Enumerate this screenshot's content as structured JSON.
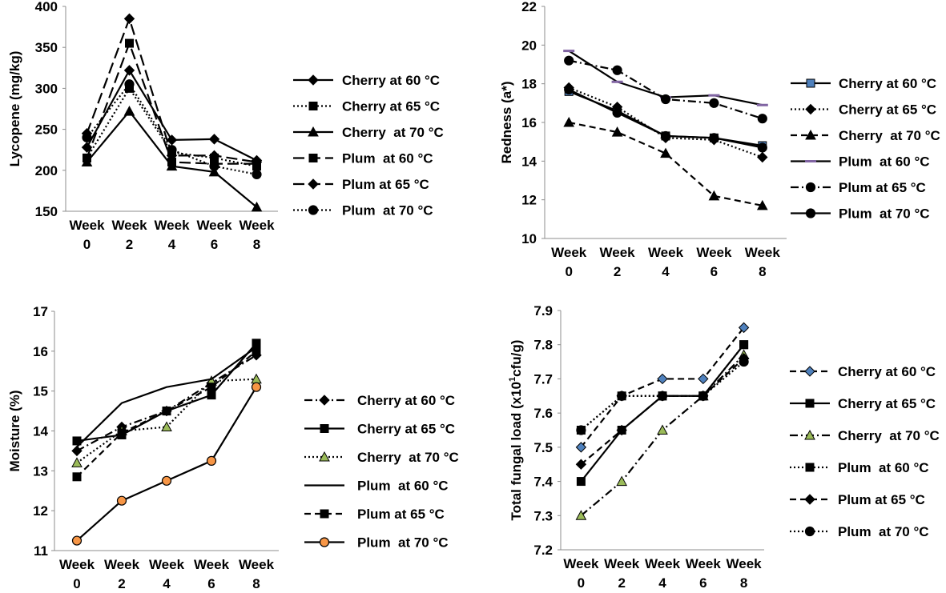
{
  "chart_data": [
    {
      "type": "line",
      "ylabel": "Lycopene (mg/kg)",
      "categories": [
        "Week 0",
        "Week 2",
        "Week 4",
        "Week 6",
        "Week 8"
      ],
      "ylim": [
        150,
        400
      ],
      "yticks": [
        150,
        200,
        250,
        300,
        350,
        400
      ],
      "grid": false,
      "legend_position": "right",
      "series": [
        {
          "name": "Cherry at 60 °C",
          "values": [
            228,
            322,
            237,
            238,
            212
          ],
          "dash": "solid",
          "marker": "diamond",
          "color": "#000000"
        },
        {
          "name": "Cherry at 65 °C",
          "values": [
            215,
            300,
            222,
            215,
            205
          ],
          "dash": "dotted",
          "marker": "square",
          "color": "#000000"
        },
        {
          "name": "Cherry  at 70 °C",
          "values": [
            210,
            272,
            205,
            198,
            155
          ],
          "dash": "solid",
          "marker": "triangle",
          "color": "#000000"
        },
        {
          "name": "Plum  at 60 °C",
          "values": [
            215,
            355,
            210,
            208,
            208
          ],
          "dash": "longdash",
          "marker": "square",
          "color": "#000000"
        },
        {
          "name": "Plum at 65 °C",
          "values": [
            245,
            385,
            218,
            218,
            210
          ],
          "dash": "longdash",
          "marker": "diamond",
          "color": "#000000"
        },
        {
          "name": "Plum  at 70 °C",
          "values": [
            240,
            305,
            225,
            205,
            195
          ],
          "dash": "dotted",
          "marker": "circle",
          "color": "#000000"
        }
      ]
    },
    {
      "type": "line",
      "ylabel": "Redness (a*)",
      "categories": [
        "Week 0",
        "Week 2",
        "Week 4",
        "Week 6",
        "Week 8"
      ],
      "ylim": [
        10,
        22
      ],
      "yticks": [
        10,
        12,
        14,
        16,
        18,
        20,
        22
      ],
      "grid": false,
      "legend_position": "right",
      "series": [
        {
          "name": "Cherry at 60 °C",
          "values": [
            17.6,
            16.6,
            15.3,
            15.2,
            14.8
          ],
          "dash": "solid",
          "marker": "square",
          "color": "#000000",
          "marker_fill": "#4f81bd"
        },
        {
          "name": "Cherry at 65 °C",
          "values": [
            17.8,
            16.8,
            15.2,
            15.1,
            14.2
          ],
          "dash": "dotted",
          "marker": "diamond",
          "color": "#000000"
        },
        {
          "name": "Cherry  at 70 °C",
          "values": [
            16.0,
            15.5,
            14.4,
            12.2,
            11.7
          ],
          "dash": "dashed",
          "marker": "triangle",
          "color": "#000000"
        },
        {
          "name": "Plum  at 60 °C",
          "values": [
            19.7,
            18.1,
            17.3,
            17.4,
            16.9
          ],
          "dash": "solid",
          "marker": "dash",
          "color": "#000000",
          "marker_fill": "#8064a2"
        },
        {
          "name": "Plum at 65 °C",
          "values": [
            19.2,
            18.7,
            17.2,
            17.0,
            16.2
          ],
          "dash": "dashdot",
          "marker": "circle",
          "color": "#000000"
        },
        {
          "name": "Plum  at 70 °C",
          "values": [
            17.7,
            16.5,
            15.3,
            15.2,
            14.7
          ],
          "dash": "solid",
          "marker": "circle",
          "color": "#000000"
        }
      ]
    },
    {
      "type": "line",
      "ylabel": "Moisture (%)",
      "categories": [
        "Week 0",
        "Week 2",
        "Week 4",
        "Week 6",
        "Week 8"
      ],
      "ylim": [
        11,
        17
      ],
      "yticks": [
        11,
        12,
        13,
        14,
        15,
        16,
        17
      ],
      "grid": false,
      "legend_position": "right",
      "series": [
        {
          "name": "Cherry at 60 °C",
          "values": [
            13.5,
            14.1,
            14.5,
            15.2,
            15.9
          ],
          "dash": "dashdot",
          "marker": "diamond",
          "color": "#000000"
        },
        {
          "name": "Cherry at 65 °C",
          "values": [
            13.75,
            13.9,
            14.5,
            14.9,
            16.2
          ],
          "dash": "solid",
          "marker": "square",
          "color": "#000000"
        },
        {
          "name": "Cherry  at 70 °C",
          "values": [
            13.2,
            14.0,
            14.1,
            15.25,
            15.3
          ],
          "dash": "dotted",
          "marker": "triangle",
          "color": "#000000",
          "marker_fill": "#9bbb59"
        },
        {
          "name": "Plum  at 60 °C",
          "values": [
            13.6,
            14.7,
            15.1,
            15.3,
            16.1
          ],
          "dash": "solid",
          "marker": "none",
          "color": "#000000"
        },
        {
          "name": "Plum at 65 °C",
          "values": [
            12.85,
            13.95,
            14.5,
            15.1,
            16.0
          ],
          "dash": "dashed",
          "marker": "square",
          "color": "#000000"
        },
        {
          "name": "Plum  at 70 °C",
          "values": [
            11.25,
            12.25,
            12.75,
            13.25,
            15.1
          ],
          "dash": "solid",
          "marker": "circle",
          "color": "#000000",
          "marker_fill": "#f79646"
        }
      ]
    },
    {
      "type": "line",
      "ylabel": "Total fungal load (x10",
      "ylabel_sup": "1",
      "ylabel_tail": "cfu/g)",
      "categories": [
        "Week 0",
        "Week 2",
        "Week 4",
        "Week 6",
        "Week 8"
      ],
      "ylim": [
        7.2,
        7.9
      ],
      "yticks": [
        7.2,
        7.3,
        7.4,
        7.5,
        7.6,
        7.7,
        7.8,
        7.9
      ],
      "grid": false,
      "legend_position": "right",
      "series": [
        {
          "name": "Cherry at 60 °C",
          "values": [
            7.5,
            7.65,
            7.7,
            7.7,
            7.85
          ],
          "dash": "dashed",
          "marker": "diamond",
          "color": "#000000",
          "marker_fill": "#4f81bd"
        },
        {
          "name": "Cherry at 65 °C",
          "values": [
            7.4,
            7.55,
            7.65,
            7.65,
            7.8
          ],
          "dash": "solid",
          "marker": "square",
          "color": "#000000"
        },
        {
          "name": "Cherry  at 70 °C",
          "values": [
            7.3,
            7.4,
            7.55,
            7.65,
            7.77
          ],
          "dash": "dashdot",
          "marker": "triangle",
          "color": "#000000",
          "marker_fill": "#9bbb59"
        },
        {
          "name": "Plum  at 60 °C",
          "values": [
            7.55,
            7.65,
            7.65,
            7.65,
            7.8
          ],
          "dash": "dotted",
          "marker": "square",
          "color": "#000000"
        },
        {
          "name": "Plum at 65 °C",
          "values": [
            7.45,
            7.55,
            7.65,
            7.65,
            7.76
          ],
          "dash": "dashed",
          "marker": "diamond",
          "color": "#000000"
        },
        {
          "name": "Plum  at 70 °C",
          "values": [
            7.55,
            7.65,
            7.65,
            7.65,
            7.75
          ],
          "dash": "dotted",
          "marker": "circle",
          "color": "#000000"
        }
      ]
    }
  ]
}
